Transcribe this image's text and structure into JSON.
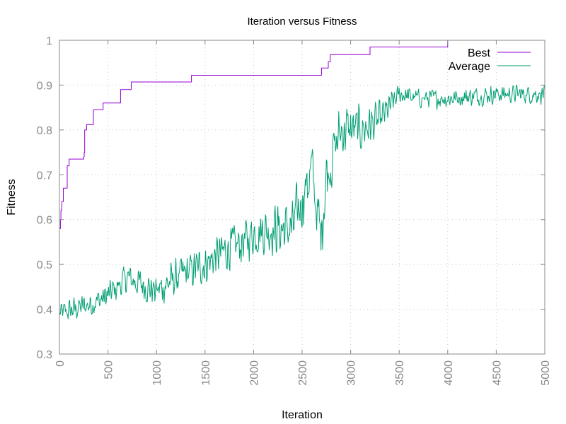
{
  "chart_data": {
    "type": "line",
    "title": "Iteration versus Fitness",
    "xlabel": "Iteration",
    "ylabel": "Fitness",
    "xlim": [
      0,
      5000
    ],
    "ylim": [
      0.3,
      1.0
    ],
    "x_ticks": [
      "0",
      "500",
      "1000",
      "1500",
      "2000",
      "2500",
      "3000",
      "3500",
      "4000",
      "4500",
      "5000"
    ],
    "y_ticks": [
      "0.3",
      "0.4",
      "0.5",
      "0.6",
      "0.7",
      "0.8",
      "0.9",
      "1"
    ],
    "grid": true,
    "legend_position": "top-right",
    "series": [
      {
        "name": "Best",
        "color": "#9400d3",
        "style": "step",
        "points": [
          [
            0,
            0.58
          ],
          [
            10,
            0.6
          ],
          [
            15,
            0.62
          ],
          [
            25,
            0.64
          ],
          [
            40,
            0.67
          ],
          [
            80,
            0.72
          ],
          [
            100,
            0.735
          ],
          [
            250,
            0.74
          ],
          [
            255,
            0.75
          ],
          [
            260,
            0.8
          ],
          [
            280,
            0.812
          ],
          [
            350,
            0.845
          ],
          [
            450,
            0.86
          ],
          [
            630,
            0.89
          ],
          [
            740,
            0.907
          ],
          [
            1360,
            0.922
          ],
          [
            2700,
            0.938
          ],
          [
            2770,
            0.952
          ],
          [
            2790,
            0.968
          ],
          [
            3200,
            0.985
          ],
          [
            4000,
            1.0
          ],
          [
            5000,
            1.0
          ]
        ]
      },
      {
        "name": "Average",
        "color": "#009e73",
        "style": "noisy",
        "trend": [
          [
            0,
            0.39
          ],
          [
            300,
            0.41
          ],
          [
            500,
            0.43
          ],
          [
            700,
            0.47
          ],
          [
            900,
            0.45
          ],
          [
            1000,
            0.44
          ],
          [
            1200,
            0.47
          ],
          [
            1500,
            0.5
          ],
          [
            1700,
            0.53
          ],
          [
            1900,
            0.55
          ],
          [
            2000,
            0.57
          ],
          [
            2200,
            0.58
          ],
          [
            2400,
            0.58
          ],
          [
            2550,
            0.68
          ],
          [
            2600,
            0.71
          ],
          [
            2690,
            0.56
          ],
          [
            2750,
            0.7
          ],
          [
            2900,
            0.8
          ],
          [
            3100,
            0.8
          ],
          [
            3300,
            0.82
          ],
          [
            3500,
            0.88
          ],
          [
            3700,
            0.87
          ],
          [
            4000,
            0.87
          ],
          [
            4500,
            0.88
          ],
          [
            5000,
            0.88
          ]
        ],
        "noise_amplitude": [
          [
            0,
            0.03
          ],
          [
            2000,
            0.06
          ],
          [
            2700,
            0.09
          ],
          [
            3300,
            0.05
          ],
          [
            3500,
            0.025
          ],
          [
            5000,
            0.025
          ]
        ],
        "samples": 900
      }
    ]
  }
}
